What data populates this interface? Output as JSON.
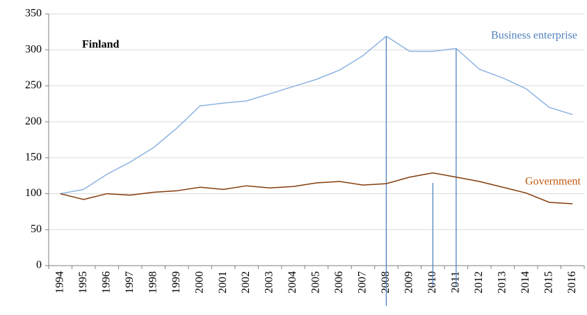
{
  "chart_data": {
    "type": "line",
    "title": "Finland",
    "categories": [
      "1994",
      "1995",
      "1996",
      "1997",
      "1998",
      "1999",
      "2000",
      "2001",
      "2002",
      "2003",
      "2004",
      "2005",
      "2006",
      "2007",
      "2008",
      "2009",
      "2010",
      "2011",
      "2012",
      "2013",
      "2014",
      "2015",
      "2016"
    ],
    "series": [
      {
        "name": "Business enterprise",
        "color": "#8db3e2",
        "label_color": "#4f81bd",
        "values": [
          100,
          106,
          127,
          144,
          164,
          191,
          222,
          226,
          229,
          239,
          249,
          259,
          272,
          292,
          319,
          298,
          298,
          302,
          273,
          261,
          246,
          220,
          210
        ]
      },
      {
        "name": "Government",
        "color": "#843c0c",
        "label_color": "#c55a11",
        "values": [
          100,
          92,
          100,
          98,
          102,
          104,
          109,
          106,
          111,
          108,
          110,
          115,
          117,
          112,
          114,
          123,
          129,
          123,
          117,
          109,
          101,
          88,
          86
        ]
      }
    ],
    "ylim": [
      0,
      350
    ],
    "yticks": [
      0,
      50,
      100,
      150,
      200,
      250,
      300,
      350
    ],
    "grid": true
  }
}
